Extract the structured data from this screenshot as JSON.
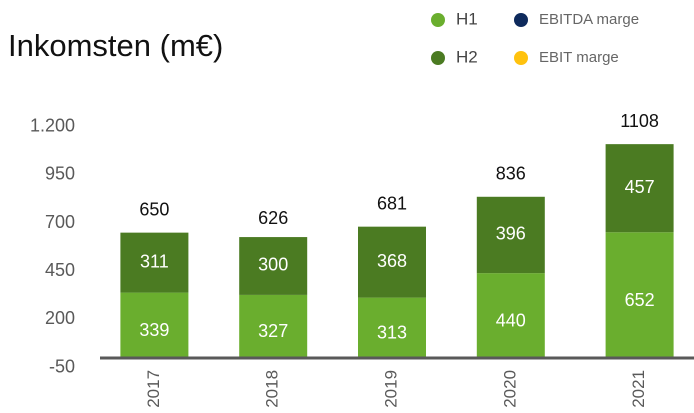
{
  "chart_data": {
    "type": "stacked_bar",
    "title": "Inkomsten (m€)",
    "categories": [
      "2017",
      "2018",
      "2019",
      "2020",
      "2021"
    ],
    "series": [
      {
        "name": "H1",
        "color": "#6aae2e",
        "values": [
          339,
          327,
          313,
          440,
          652
        ]
      },
      {
        "name": "H2",
        "color": "#4b7b22",
        "values": [
          311,
          300,
          368,
          396,
          457
        ]
      }
    ],
    "totals": [
      650,
      626,
      681,
      836,
      1108
    ],
    "legend_only": [
      {
        "name": "EBITDA marge",
        "color": "#0e2a5c"
      },
      {
        "name": "EBIT marge",
        "color": "#ffc20e"
      }
    ],
    "ylim": [
      -50,
      1200
    ],
    "yticks": [
      -50,
      200,
      450,
      700,
      950,
      {
        "value": 1200,
        "label": "1.200"
      }
    ]
  }
}
